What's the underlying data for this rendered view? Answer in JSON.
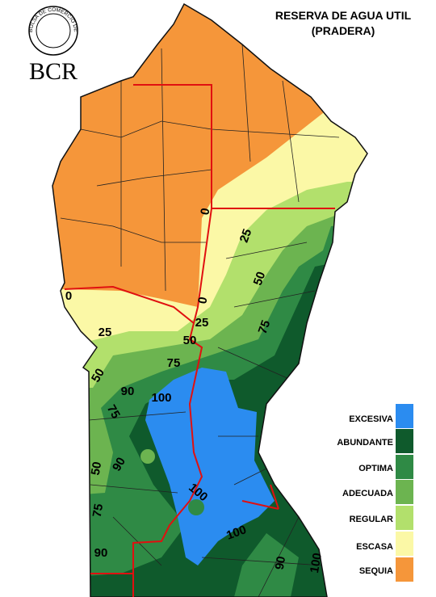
{
  "header": {
    "title_lines": [
      "RESERVA DE AGUA UTIL",
      "(PRADERA)"
    ]
  },
  "logo": {
    "text": "BCR",
    "seal_text": "BOLSA DE COMERCIO DE ROSARIO"
  },
  "legend": [
    {
      "label": "EXCESIVA",
      "color": "#2b8cf0"
    },
    {
      "label": "ABUNDANTE",
      "color": "#0f5a2c"
    },
    {
      "label": "OPTIMA",
      "color": "#2f8a45"
    },
    {
      "label": "ADECUADA",
      "color": "#6cb450"
    },
    {
      "label": "REGULAR",
      "color": "#b2e06c"
    },
    {
      "label": "ESCASA",
      "color": "#fbf8a6"
    },
    {
      "label": "SEQUIA",
      "color": "#f5963a"
    }
  ],
  "contour_labels": [
    0,
    0,
    0,
    25,
    25,
    25,
    50,
    50,
    50,
    50,
    75,
    75,
    75,
    75,
    90,
    90,
    90,
    90,
    100,
    100,
    100,
    100
  ]
}
